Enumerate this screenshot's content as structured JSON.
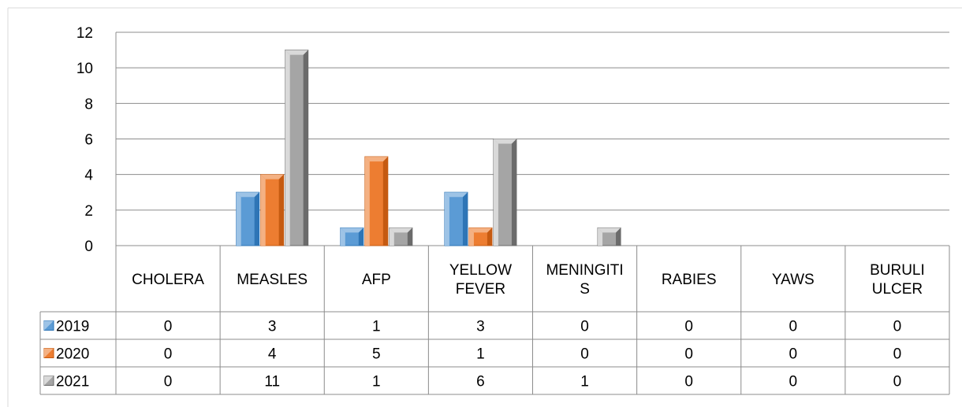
{
  "chart_data": {
    "type": "bar",
    "title": "",
    "xlabel": "",
    "ylabel": "",
    "ylim": [
      0,
      12
    ],
    "yticks": [
      0,
      2,
      4,
      6,
      8,
      10,
      12
    ],
    "grid": true,
    "legend": "data-table-left",
    "categories": [
      "CHOLERA",
      "MEASLES",
      "AFP",
      "YELLOW FEVER",
      "MENINGITIS",
      "RABIES",
      "YAWS",
      "BURULI ULCER"
    ],
    "category_labels": [
      [
        "CHOLERA"
      ],
      [
        "MEASLES"
      ],
      [
        "AFP"
      ],
      [
        "YELLOW",
        "FEVER"
      ],
      [
        "MENINGITI",
        "S"
      ],
      [
        "RABIES"
      ],
      [
        "YAWS"
      ],
      [
        "BURULI",
        "ULCER"
      ]
    ],
    "series": [
      {
        "name": "2019",
        "values": [
          0,
          3,
          1,
          3,
          0,
          0,
          0,
          0
        ],
        "color": "#5b9bd5",
        "dark": "#2e75b6",
        "light": "#9dc3e6"
      },
      {
        "name": "2020",
        "values": [
          0,
          4,
          5,
          1,
          0,
          0,
          0,
          0
        ],
        "color": "#ed7d31",
        "dark": "#c55a11",
        "light": "#f4b183"
      },
      {
        "name": "2021",
        "values": [
          0,
          11,
          1,
          6,
          1,
          0,
          0,
          0
        ],
        "color": "#a5a5a5",
        "dark": "#6b6b6b",
        "light": "#d9d9d9"
      }
    ]
  }
}
